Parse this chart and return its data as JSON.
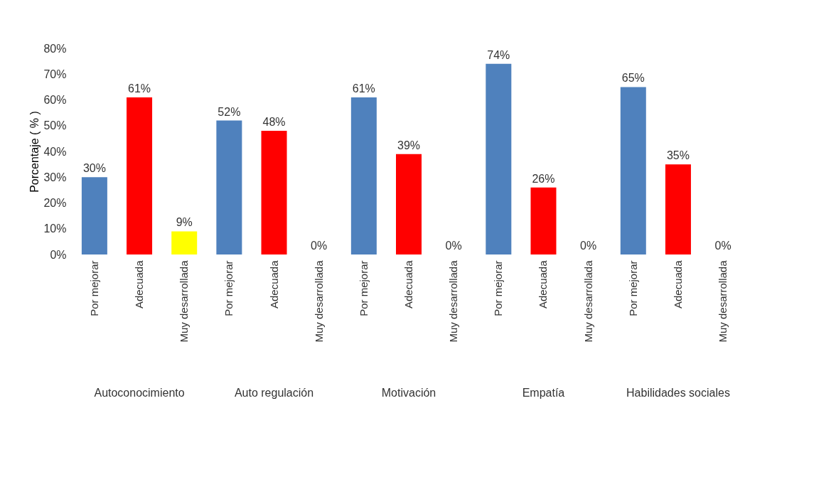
{
  "chart_data": {
    "type": "bar",
    "ylabel": "Porcentaje ( % )",
    "categories": [
      "Por mejorar",
      "Adecuada",
      "Muy desarrollada",
      "Por mejorar",
      "Adecuada",
      "Muy desarrollada",
      "Por mejorar",
      "Adecuada",
      "Muy desarrollada",
      "Por mejorar",
      "Adecuada",
      "Muy desarrollada",
      "Por mejorar",
      "Adecuada",
      "Muy desarrollada"
    ],
    "values": [
      30,
      61,
      9,
      52,
      48,
      0,
      61,
      39,
      0,
      74,
      26,
      0,
      65,
      35,
      0
    ],
    "colors": [
      "#4f81bd",
      "#ff0000",
      "#ffff00",
      "#4f81bd",
      "#ff0000",
      "#ffff00",
      "#4f81bd",
      "#ff0000",
      "#ffff00",
      "#4f81bd",
      "#ff0000",
      "#1f497d",
      "#4f81bd",
      "#ff0000",
      "#ffff00"
    ],
    "value_labels": [
      "30%",
      "61%",
      "9%",
      "52%",
      "48%",
      "0%",
      "61%",
      "39%",
      "0%",
      "74%",
      "26%",
      "0%",
      "65%",
      "35%",
      "0%"
    ],
    "annotations": [
      "Autoconocimiento",
      "Auto regulación",
      "Motivación",
      "Empatía",
      "Habilidades sociales"
    ],
    "ylim": [
      0,
      80
    ],
    "yticks": [
      {
        "value": 0,
        "label": "0%"
      },
      {
        "value": 10,
        "label": "10%"
      },
      {
        "value": 20,
        "label": "20%"
      },
      {
        "value": 30,
        "label": "30%"
      },
      {
        "value": 40,
        "label": "40%"
      },
      {
        "value": 50,
        "label": "50%"
      },
      {
        "value": 60,
        "label": "60%"
      },
      {
        "value": 70,
        "label": "70%"
      },
      {
        "value": 80,
        "label": "80%"
      }
    ],
    "grid": false
  }
}
